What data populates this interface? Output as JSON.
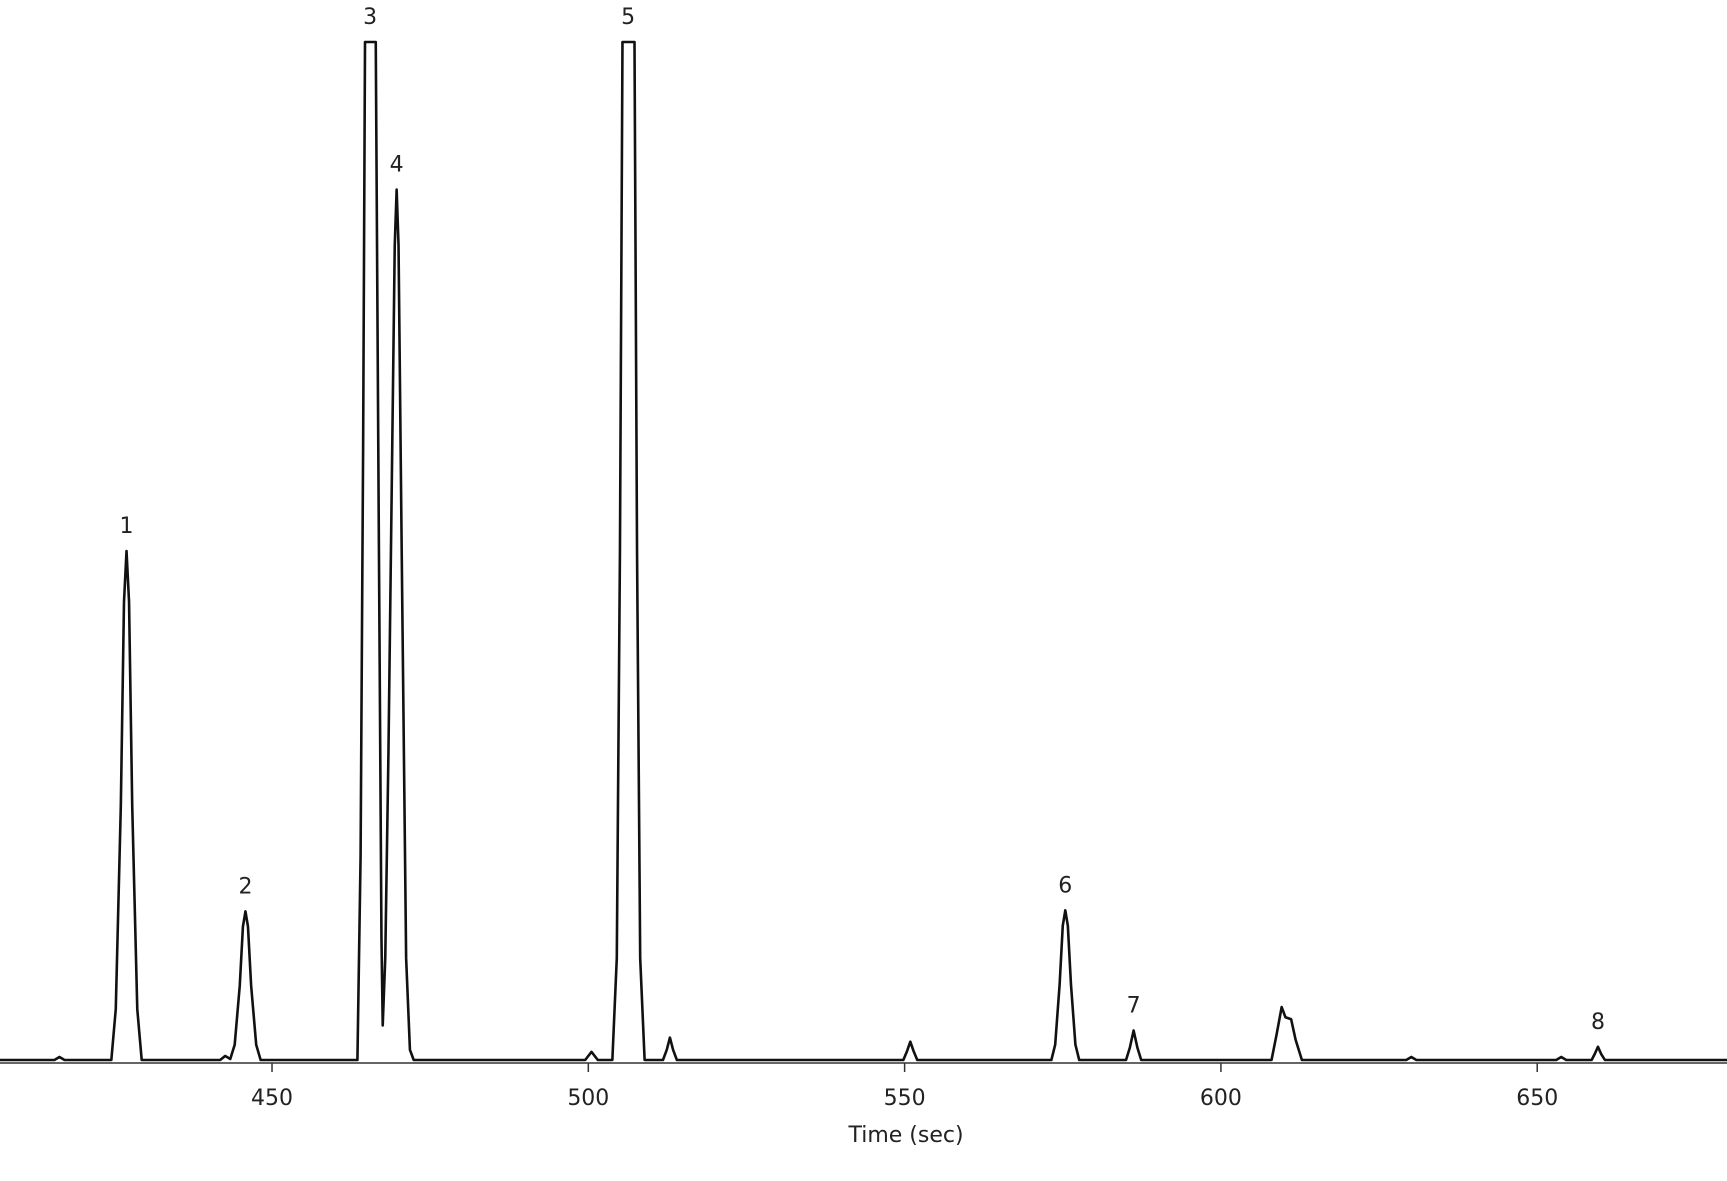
{
  "chart_data": {
    "type": "line",
    "x_label": "Time (sec)",
    "xlim": [
      407,
      680
    ],
    "ylim": [
      0,
      100
    ],
    "xticks": [
      450,
      500,
      550,
      600,
      650
    ],
    "series": [
      {
        "color": "#111111",
        "x": [
          407,
          415.6,
          416.4,
          417.2,
          424.6,
          425.3,
          426.1,
          426.6,
          427.0,
          427.4,
          427.9,
          428.7,
          429.4,
          441.8,
          442.6,
          443.4,
          444.1,
          444.9,
          445.4,
          445.8,
          446.2,
          446.7,
          447.5,
          448.2,
          463.5,
          464.0,
          464.4,
          464.7,
          466.4,
          466.9,
          467.3,
          467.5,
          467.9,
          468.4,
          469.0,
          469.4,
          469.7,
          470.0,
          470.5,
          471.2,
          471.8,
          472.4,
          499.5,
          500.5,
          501.5,
          503.8,
          504.5,
          505.0,
          505.4,
          507.3,
          507.7,
          508.2,
          508.9,
          511.8,
          512.4,
          512.9,
          513.4,
          514.0,
          549.8,
          550.4,
          550.9,
          551.4,
          552.0,
          573.2,
          573.8,
          574.5,
          575.0,
          575.4,
          575.8,
          576.3,
          577.0,
          577.6,
          585.0,
          585.6,
          586.2,
          586.8,
          587.4,
          608.0,
          608.8,
          609.6,
          610.2,
          611.1,
          611.8,
          612.8,
          629.3,
          630.1,
          630.9,
          653.0,
          653.8,
          654.6,
          658.6,
          659.1,
          659.6,
          660.1,
          660.7,
          680
        ],
        "values": [
          0,
          0,
          0.3,
          0,
          0,
          5,
          25,
          45,
          50,
          45,
          25,
          5,
          0,
          0,
          0.4,
          0.1,
          1.5,
          7.3,
          13.1,
          14.6,
          13.1,
          7.3,
          1.5,
          0,
          0,
          20,
          60,
          100,
          100,
          50,
          12,
          3.4,
          10,
          30,
          60,
          80,
          85.5,
          80,
          50,
          10,
          1,
          0,
          0,
          0.8,
          0,
          0,
          10,
          50,
          100,
          100,
          50,
          10,
          0,
          0,
          1,
          2.2,
          1,
          0,
          0,
          0.9,
          1.8,
          0.9,
          0,
          0,
          1.5,
          7.4,
          13.2,
          14.7,
          13.2,
          7.4,
          1.5,
          0,
          0,
          1.2,
          2.9,
          1.2,
          0,
          0,
          2.5,
          5.2,
          4.2,
          4.0,
          2,
          0,
          0,
          0.3,
          0,
          0,
          0.3,
          0,
          0,
          0.6,
          1.3,
          0.6,
          0,
          0
        ]
      }
    ],
    "annotations": [
      {
        "text": "1",
        "x": 427.0
      },
      {
        "text": "2",
        "x": 445.8
      },
      {
        "text": "3",
        "x": 465.5
      },
      {
        "text": "4",
        "x": 469.7
      },
      {
        "text": "5",
        "x": 506.3
      },
      {
        "text": "6",
        "x": 575.4
      },
      {
        "text": "7",
        "x": 586.2
      },
      {
        "text": "8",
        "x": 659.6
      }
    ]
  }
}
